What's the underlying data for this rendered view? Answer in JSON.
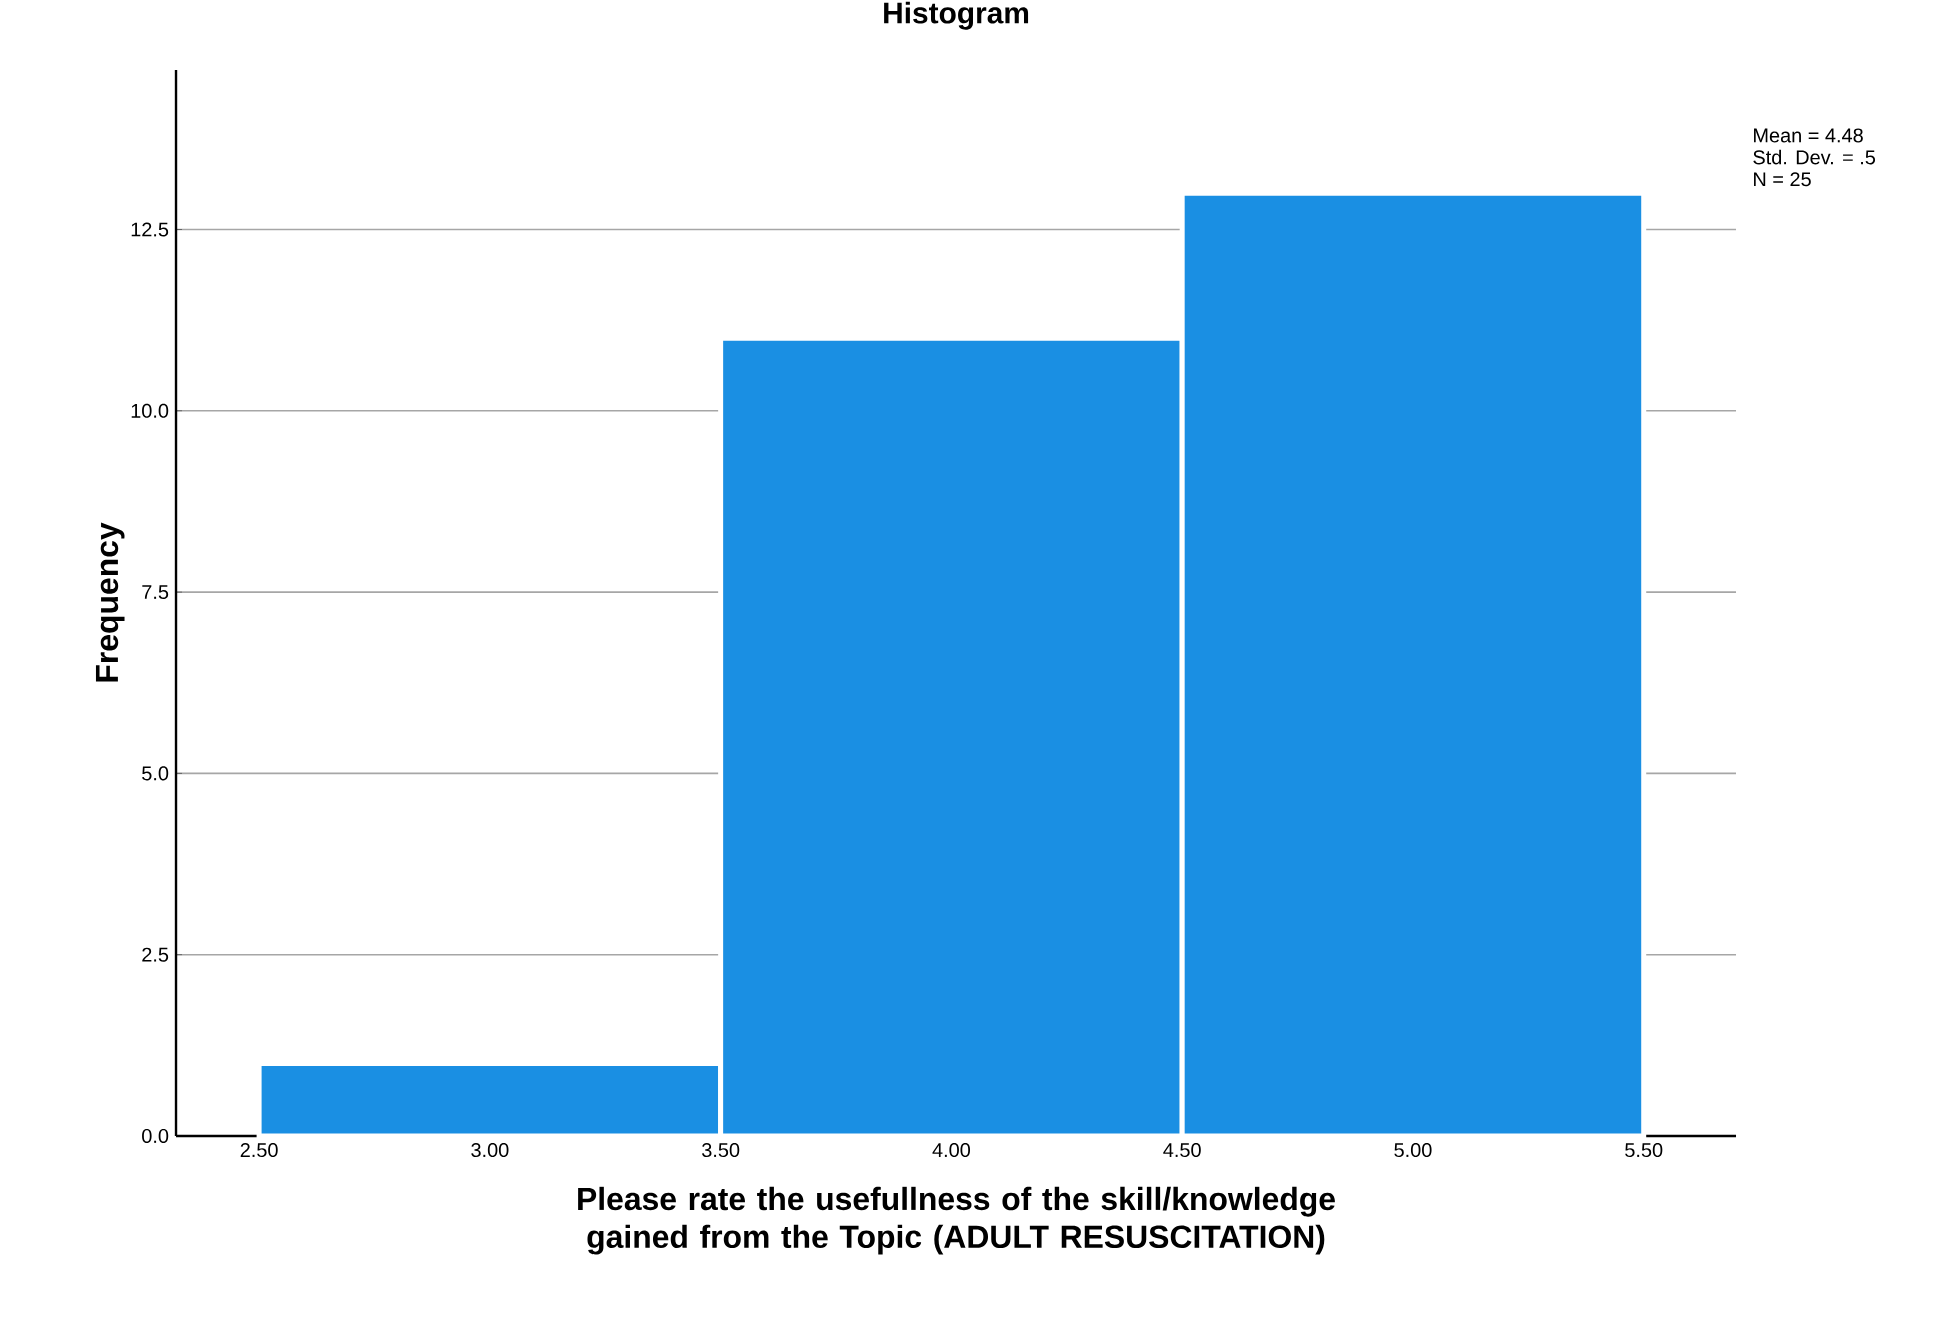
{
  "chart_data": {
    "type": "histogram",
    "title": "Histogram",
    "xlabel": "Please rate the usefullness of the skill/knowledge gained from the Topic (ADULT RESUSCITATION)",
    "ylabel": "Frequency",
    "bins": [
      2.5,
      3.5,
      4.5,
      5.5
    ],
    "values": [
      1,
      11,
      13
    ],
    "color": "#1a8fe3",
    "xlim": [
      2.32,
      5.7
    ],
    "ylim": [
      0,
      14.7
    ],
    "xticks": [
      {
        "value": 2.5,
        "label": "2.50"
      },
      {
        "value": 3.0,
        "label": "3.00"
      },
      {
        "value": 3.5,
        "label": "3.50"
      },
      {
        "value": 4.0,
        "label": "4.00"
      },
      {
        "value": 4.5,
        "label": "4.50"
      },
      {
        "value": 5.0,
        "label": "5.00"
      },
      {
        "value": 5.5,
        "label": "5.50"
      }
    ],
    "yticks": [
      {
        "value": 0,
        "label": "0.0"
      },
      {
        "value": 2.5,
        "label": "2.5"
      },
      {
        "value": 5,
        "label": "5.0"
      },
      {
        "value": 7.5,
        "label": "7.5"
      },
      {
        "value": 10,
        "label": "10.0"
      },
      {
        "value": 12.5,
        "label": "12.5"
      }
    ],
    "grid": "y",
    "annotations": [
      "Mean = 4.48",
      "Std. Dev. = .5",
      "N = 25"
    ]
  }
}
